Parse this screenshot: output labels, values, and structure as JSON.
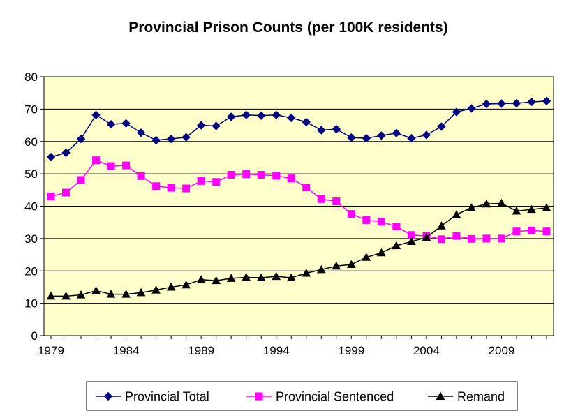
{
  "chart_data": {
    "type": "line",
    "title": "Provincial Prison Counts (per 100K residents)",
    "xlabel": "",
    "ylabel": "",
    "xlim": [
      1979,
      2012
    ],
    "ylim": [
      0,
      80
    ],
    "yticks": [
      "0",
      "10",
      "20",
      "30",
      "40",
      "50",
      "60",
      "70",
      "80"
    ],
    "xticks": [
      "1979",
      "1984",
      "1989",
      "1994",
      "1999",
      "2004",
      "2009"
    ],
    "grid": true,
    "legend_position": "bottom",
    "x": [
      1979,
      1980,
      1981,
      1982,
      1983,
      1984,
      1985,
      1986,
      1987,
      1988,
      1989,
      1990,
      1991,
      1992,
      1993,
      1994,
      1995,
      1996,
      1997,
      1998,
      1999,
      2000,
      2001,
      2002,
      2003,
      2004,
      2005,
      2006,
      2007,
      2008,
      2009,
      2010,
      2011,
      2012
    ],
    "series": [
      {
        "name": "Provincial Total",
        "color": "#000080",
        "marker": "diamond",
        "values": [
          55.2,
          56.5,
          60.8,
          68.2,
          65.3,
          65.6,
          62.7,
          60.4,
          60.8,
          61.3,
          65.0,
          64.8,
          67.6,
          68.2,
          68.0,
          68.2,
          67.3,
          66.0,
          63.5,
          63.8,
          61.2,
          61.0,
          61.8,
          62.6,
          61.0,
          62.0,
          64.6,
          69.1,
          70.2,
          71.6,
          71.7,
          71.8,
          72.2,
          72.5
        ]
      },
      {
        "name": "Provincial Sentenced",
        "color": "#ff00ff",
        "marker": "square",
        "values": [
          43.0,
          44.2,
          48.1,
          54.2,
          52.4,
          52.6,
          49.3,
          46.2,
          45.7,
          45.5,
          47.8,
          47.5,
          49.7,
          49.9,
          49.7,
          49.4,
          48.6,
          45.8,
          42.2,
          41.5,
          37.6,
          35.7,
          35.2,
          33.7,
          31.1,
          30.8,
          29.8,
          30.8,
          29.9,
          30.0,
          30.0,
          32.2,
          32.5,
          32.2
        ]
      },
      {
        "name": "Remand",
        "color": "#000000",
        "marker": "triangle",
        "values": [
          12.2,
          12.2,
          12.6,
          13.9,
          12.8,
          12.8,
          13.3,
          14.1,
          15.0,
          15.7,
          17.3,
          17.0,
          17.7,
          18.0,
          17.9,
          18.3,
          17.9,
          19.3,
          20.4,
          21.5,
          22.0,
          24.2,
          25.6,
          27.8,
          29.1,
          30.3,
          33.9,
          37.4,
          39.5,
          40.7,
          40.9,
          38.5,
          39.0,
          39.5
        ]
      }
    ]
  }
}
